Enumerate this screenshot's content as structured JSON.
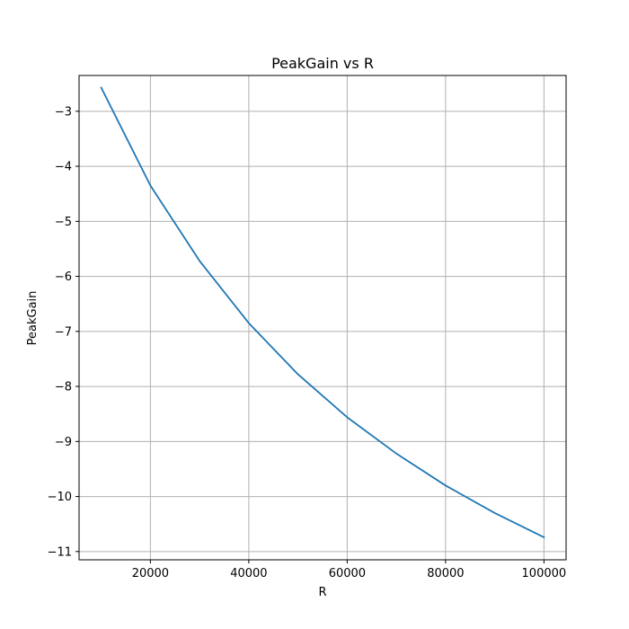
{
  "chart_data": {
    "type": "line",
    "title": "PeakGain vs R",
    "xlabel": "R",
    "ylabel": "PeakGain",
    "xlim": [
      5500,
      104500
    ],
    "ylim": [
      -11.15,
      -2.35
    ],
    "xticks": [
      20000,
      40000,
      60000,
      80000,
      100000
    ],
    "xtick_labels": [
      "20000",
      "40000",
      "60000",
      "80000",
      "100000"
    ],
    "yticks": [
      -3,
      -4,
      -5,
      -6,
      -7,
      -8,
      -9,
      -10,
      -11
    ],
    "ytick_labels": [
      "−3",
      "−4",
      "−5",
      "−6",
      "−7",
      "−8",
      "−9",
      "−10",
      "−11"
    ],
    "grid": true,
    "series": [
      {
        "color": "#1f77b4",
        "x": [
          10000,
          20000,
          30000,
          40000,
          50000,
          60000,
          70000,
          80000,
          90000,
          100000
        ],
        "y": [
          -2.57,
          -4.35,
          -5.72,
          -6.85,
          -7.78,
          -8.56,
          -9.22,
          -9.8,
          -10.3,
          -10.74
        ]
      }
    ]
  }
}
